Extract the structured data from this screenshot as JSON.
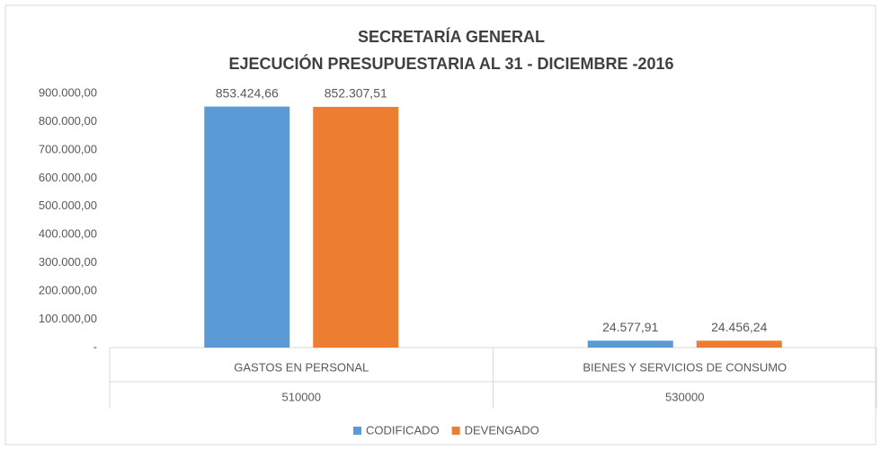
{
  "chart_data": {
    "type": "bar",
    "title": [
      "SECRETARÍA GENERAL",
      "EJECUCIÓN PRESUPUESTARIA AL 31 - DICIEMBRE -2016"
    ],
    "categories": [
      "GASTOS EN PERSONAL",
      "BIENES Y SERVICIOS DE CONSUMO"
    ],
    "category_codes": [
      "510000",
      "530000"
    ],
    "series": [
      {
        "name": "CODIFICADO",
        "color": "#5b9bd5",
        "values": [
          853424.66,
          24577.91
        ],
        "value_labels": [
          "853.424,66",
          "24.577,91"
        ]
      },
      {
        "name": "DEVENGADO",
        "color": "#ed7d31",
        "values": [
          852307.51,
          24456.24
        ],
        "value_labels": [
          "852.307,51",
          "24.456,24"
        ]
      }
    ],
    "ylim": [
      0,
      900000
    ],
    "yticks": [
      {
        "value": 0,
        "label": "-"
      },
      {
        "value": 100000,
        "label": "100.000,00"
      },
      {
        "value": 200000,
        "label": "200.000,00"
      },
      {
        "value": 300000,
        "label": "300.000,00"
      },
      {
        "value": 400000,
        "label": "400.000,00"
      },
      {
        "value": 500000,
        "label": "500.000,00"
      },
      {
        "value": 600000,
        "label": "600.000,00"
      },
      {
        "value": 700000,
        "label": "700.000,00"
      },
      {
        "value": 800000,
        "label": "800.000,00"
      },
      {
        "value": 900000,
        "label": "900.000,00"
      }
    ],
    "legend": "bottom"
  }
}
